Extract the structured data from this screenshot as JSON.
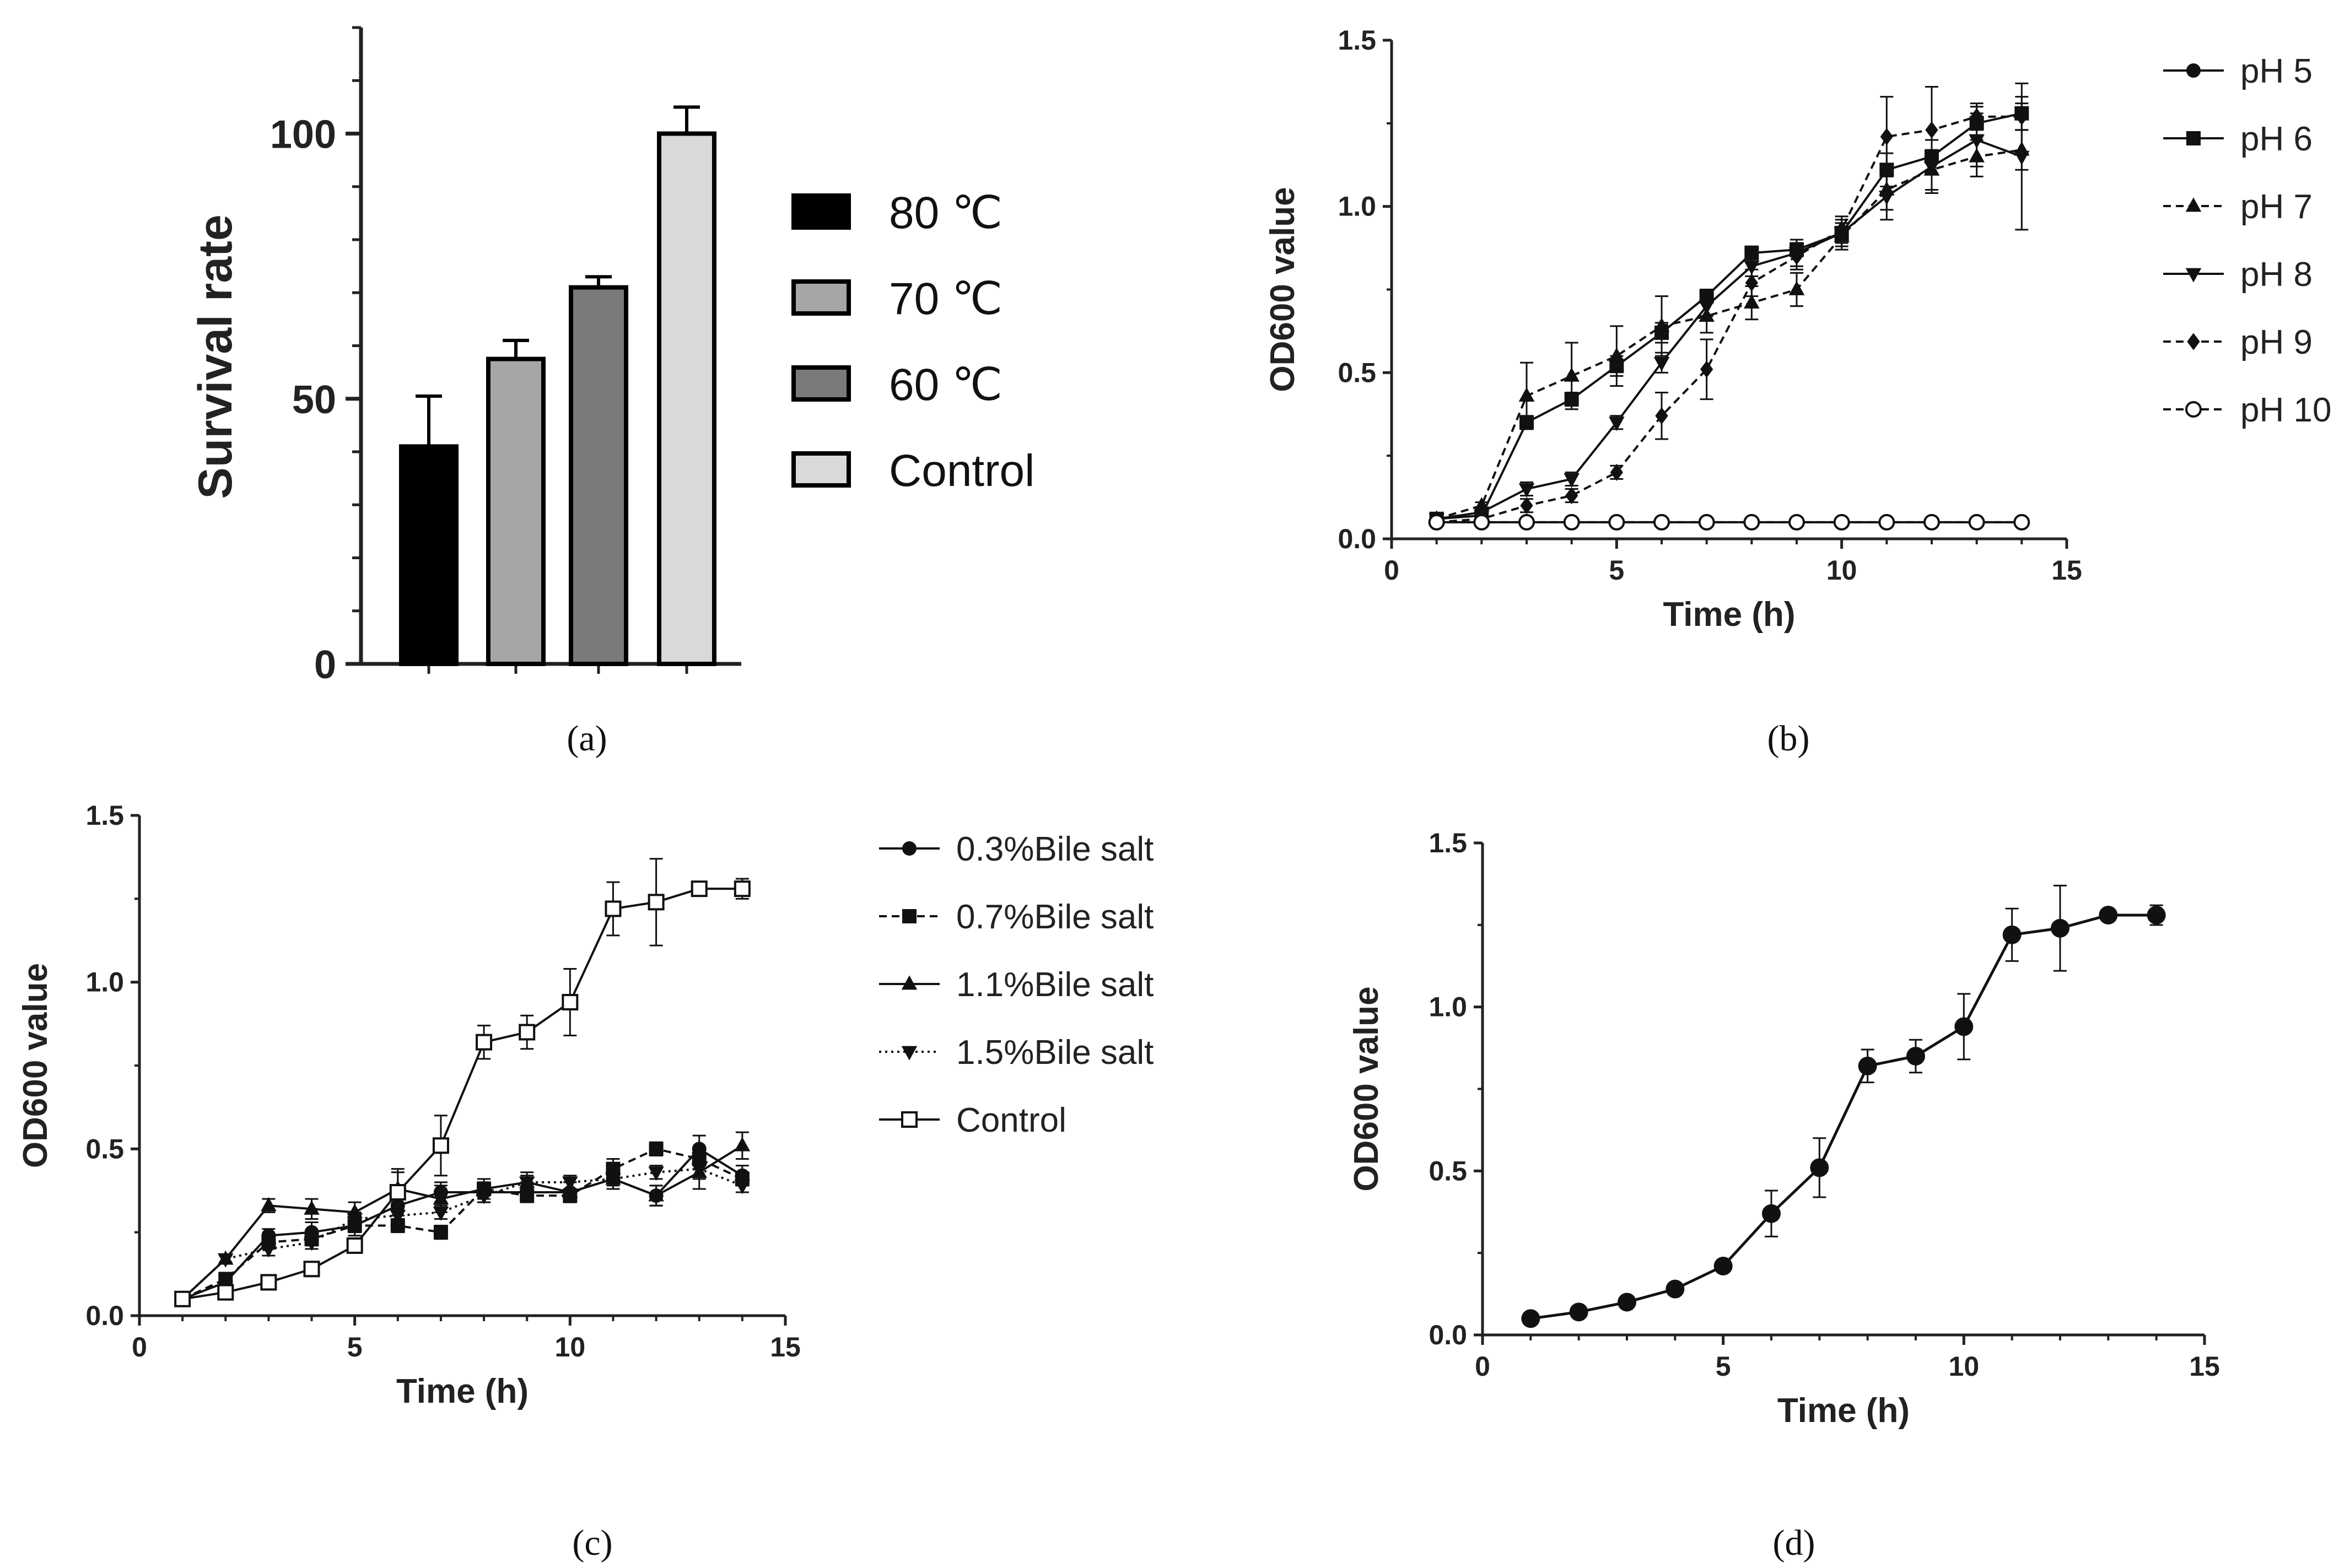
{
  "chart_data": [
    {
      "id": "a",
      "panel_label": "(a)",
      "type": "bar",
      "ylabel": "Survival rate",
      "ylim": [
        0,
        120
      ],
      "yticks": [
        0,
        50,
        100
      ],
      "categories": [
        "80 ℃",
        "70 ℃",
        "60 ℃",
        "Control"
      ],
      "values": [
        41,
        57.5,
        71,
        100
      ],
      "errors": [
        9.5,
        3.5,
        2,
        5
      ],
      "colors": [
        "#000000",
        "#a6a6a6",
        "#7a7a7a",
        "#d9d9d9"
      ],
      "legend": [
        "80 ℃",
        "70 ℃",
        "60 ℃",
        "Control"
      ]
    },
    {
      "id": "b",
      "panel_label": "(b)",
      "type": "line",
      "xlabel": "Time (h)",
      "ylabel": "OD600 value",
      "xlim": [
        0,
        15
      ],
      "ylim": [
        0,
        1.5
      ],
      "xticks": [
        0,
        5,
        10,
        15
      ],
      "yticks": [
        0.0,
        0.5,
        1.0,
        1.5
      ],
      "x": [
        1,
        2,
        3,
        4,
        5,
        6,
        7,
        8,
        9,
        10,
        11,
        12,
        13,
        14
      ],
      "series": [
        {
          "name": "pH 5",
          "marker": "circle",
          "dash": "solid",
          "values": [
            0.05,
            0.05,
            0.05,
            0.05,
            0.05,
            0.05,
            0.05,
            0.05,
            0.05,
            0.05,
            0.05,
            0.05,
            0.05,
            0.05
          ],
          "errors": [
            0.01,
            0.01,
            0.01,
            0.01,
            0.01,
            0.01,
            0.01,
            0.01,
            0.01,
            0.01,
            0.01,
            0.01,
            0.01,
            0.01
          ]
        },
        {
          "name": "pH 6",
          "marker": "square",
          "dash": "solid",
          "values": [
            0.06,
            0.07,
            0.35,
            0.42,
            0.52,
            0.62,
            0.73,
            0.86,
            0.87,
            0.92,
            1.11,
            1.15,
            1.25,
            1.28
          ],
          "errors": [
            0.01,
            0.01,
            0.02,
            0.02,
            0.03,
            0.03,
            0.02,
            0.02,
            0.02,
            0.03,
            0.05,
            0.05,
            0.05,
            0.05
          ]
        },
        {
          "name": "pH 7",
          "marker": "triangle-up",
          "dash": "dashed",
          "values": [
            0.06,
            0.1,
            0.43,
            0.49,
            0.55,
            0.64,
            0.67,
            0.71,
            0.75,
            0.91,
            1.05,
            1.11,
            1.15,
            1.17
          ],
          "errors": [
            0.01,
            0.01,
            0.1,
            0.1,
            0.09,
            0.09,
            0.05,
            0.05,
            0.05,
            0.04,
            0.06,
            0.06,
            0.06,
            0.06
          ]
        },
        {
          "name": "pH 8",
          "marker": "triangle-down",
          "dash": "solid",
          "values": [
            0.06,
            0.08,
            0.15,
            0.18,
            0.35,
            0.53,
            0.7,
            0.82,
            0.86,
            0.92,
            1.03,
            1.12,
            1.2,
            1.15
          ],
          "errors": [
            0.01,
            0.01,
            0.02,
            0.02,
            0.02,
            0.03,
            0.03,
            0.03,
            0.04,
            0.04,
            0.07,
            0.08,
            0.08,
            0.22
          ]
        },
        {
          "name": "pH 9",
          "marker": "diamond",
          "dash": "dashed",
          "values": [
            0.05,
            0.06,
            0.1,
            0.13,
            0.2,
            0.37,
            0.51,
            0.77,
            0.85,
            0.93,
            1.21,
            1.23,
            1.27,
            1.27
          ],
          "errors": [
            0.01,
            0.01,
            0.02,
            0.02,
            0.02,
            0.07,
            0.09,
            0.04,
            0.04,
            0.04,
            0.12,
            0.13,
            0.04,
            0.04
          ]
        },
        {
          "name": "pH 10",
          "marker": "circle-open",
          "dash": "dashed",
          "values": [
            0.05,
            0.05,
            0.05,
            0.05,
            0.05,
            0.05,
            0.05,
            0.05,
            0.05,
            0.05,
            0.05,
            0.05,
            0.05,
            0.05
          ],
          "errors": [
            0.01,
            0.01,
            0.01,
            0.01,
            0.01,
            0.01,
            0.01,
            0.01,
            0.01,
            0.01,
            0.01,
            0.01,
            0.01,
            0.01
          ]
        }
      ]
    },
    {
      "id": "c",
      "panel_label": "(c)",
      "type": "line",
      "xlabel": "Time (h)",
      "ylabel": "OD600 value",
      "xlim": [
        0,
        15
      ],
      "ylim": [
        0,
        1.5
      ],
      "xticks": [
        0,
        5,
        10,
        15
      ],
      "yticks": [
        0.0,
        0.5,
        1.0,
        1.5
      ],
      "x": [
        1,
        2,
        3,
        4,
        5,
        6,
        7,
        8,
        9,
        10,
        11,
        12,
        13,
        14
      ],
      "series": [
        {
          "name": "0.3%Bile salt",
          "marker": "circle",
          "dash": "solid",
          "values": [
            0.05,
            0.1,
            0.24,
            0.25,
            0.27,
            0.33,
            0.37,
            0.37,
            0.37,
            0.37,
            0.41,
            0.36,
            0.5,
            0.42
          ],
          "errors": [
            0.01,
            0.02,
            0.02,
            0.03,
            0.03,
            0.03,
            0.03,
            0.03,
            0.03,
            0.03,
            0.03,
            0.03,
            0.04,
            0.03
          ]
        },
        {
          "name": "0.7%Bile salt",
          "marker": "square",
          "dash": "dashed",
          "values": [
            0.05,
            0.11,
            0.22,
            0.23,
            0.27,
            0.27,
            0.25,
            0.38,
            0.36,
            0.36,
            0.44,
            0.5,
            0.47,
            0.41
          ],
          "errors": [
            0.01,
            0.01,
            0.02,
            0.02,
            0.02,
            0.02,
            0.02,
            0.02,
            0.02,
            0.02,
            0.03,
            0.02,
            0.03,
            0.02
          ]
        },
        {
          "name": "1.1%Bile salt",
          "marker": "triangle-up",
          "dash": "solid",
          "values": [
            0.05,
            0.17,
            0.33,
            0.32,
            0.31,
            0.38,
            0.35,
            0.38,
            0.4,
            0.37,
            0.41,
            0.36,
            0.43,
            0.51
          ],
          "errors": [
            0.01,
            0.01,
            0.02,
            0.03,
            0.03,
            0.05,
            0.04,
            0.03,
            0.03,
            0.03,
            0.03,
            0.03,
            0.05,
            0.04
          ]
        },
        {
          "name": "1.5%Bile salt",
          "marker": "triangle-down",
          "dash": "dotted",
          "values": [
            0.05,
            0.17,
            0.2,
            0.22,
            0.29,
            0.3,
            0.31,
            0.36,
            0.4,
            0.4,
            0.41,
            0.43,
            0.44,
            0.39
          ],
          "errors": [
            0.01,
            0.01,
            0.02,
            0.02,
            0.02,
            0.02,
            0.02,
            0.02,
            0.02,
            0.02,
            0.02,
            0.02,
            0.03,
            0.02
          ]
        },
        {
          "name": "Control",
          "marker": "square-open",
          "dash": "solid",
          "values": [
            0.05,
            0.07,
            0.1,
            0.14,
            0.21,
            0.37,
            0.51,
            0.82,
            0.85,
            0.94,
            1.22,
            1.24,
            1.28,
            1.28
          ],
          "errors": [
            0.01,
            0.01,
            0.01,
            0.01,
            0.02,
            0.07,
            0.09,
            0.05,
            0.05,
            0.1,
            0.08,
            0.13,
            0.02,
            0.03
          ]
        }
      ]
    },
    {
      "id": "d",
      "panel_label": "(d)",
      "type": "line",
      "xlabel": "Time (h)",
      "ylabel": "OD600 value",
      "xlim": [
        0,
        15
      ],
      "ylim": [
        0,
        1.5
      ],
      "xticks": [
        0,
        5,
        10,
        15
      ],
      "yticks": [
        0.0,
        0.5,
        1.0,
        1.5
      ],
      "x": [
        1,
        2,
        3,
        4,
        5,
        6,
        7,
        8,
        9,
        10,
        11,
        12,
        13,
        14
      ],
      "series": [
        {
          "name": "",
          "marker": "circle",
          "dash": "solid",
          "values": [
            0.05,
            0.07,
            0.1,
            0.14,
            0.21,
            0.37,
            0.51,
            0.82,
            0.85,
            0.94,
            1.22,
            1.24,
            1.28,
            1.28
          ],
          "errors": [
            0.01,
            0.01,
            0.01,
            0.01,
            0.01,
            0.07,
            0.09,
            0.05,
            0.05,
            0.1,
            0.08,
            0.13,
            0.01,
            0.03
          ]
        }
      ]
    }
  ]
}
